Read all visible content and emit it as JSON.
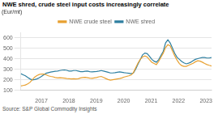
{
  "chart_data": {
    "type": "line",
    "title": "NWE shred, crude steel input costs increasingly correlate",
    "y_label": "(Eur/mt)",
    "source": "Source: S&P Global Commodity Insights",
    "x": [
      2016.25,
      2016.3337,
      2016.4175,
      2016.5012,
      2016.5849,
      2016.6687,
      2016.7524,
      2016.8361,
      2016.9199,
      2017.0036,
      2017.0873,
      2017.1711,
      2017.2548,
      2017.3386,
      2017.4223,
      2017.506,
      2017.5898,
      2017.6735,
      2017.7572,
      2017.841,
      2017.9247,
      2018.0084,
      2018.0922,
      2018.1759,
      2018.2596,
      2018.3434,
      2018.4271,
      2018.5108,
      2018.5946,
      2018.6783,
      2018.762,
      2018.8458,
      2018.9295,
      2019.0133,
      2019.097,
      2019.1807,
      2019.2645,
      2019.3482,
      2019.4319,
      2019.5157,
      2019.5994,
      2019.6831,
      2019.7669,
      2019.8506,
      2019.9343,
      2020.0181,
      2020.1018,
      2020.1855,
      2020.2693,
      2020.353,
      2020.4367,
      2020.5205,
      2020.6042,
      2020.688,
      2020.7717,
      2020.8554,
      2020.9392,
      2021.0229,
      2021.1066,
      2021.1904,
      2021.2741,
      2021.3578,
      2021.4416,
      2021.5253,
      2021.609,
      2021.6928,
      2021.7765,
      2021.8602,
      2021.944,
      2022.0277,
      2022.1114,
      2022.1952,
      2022.2789,
      2022.3627,
      2022.4464,
      2022.5301,
      2022.6139,
      2022.6976,
      2022.7813,
      2022.8651,
      2022.9488,
      2023.0325,
      2023.1163,
      2023.2
    ],
    "series": [
      {
        "name": "NWE crude steel",
        "color": "#e8a030",
        "values": [
          140,
          145,
          150,
          160,
          175,
          200,
          225,
          240,
          250,
          255,
          255,
          248,
          238,
          232,
          228,
          222,
          218,
          220,
          218,
          215,
          212,
          210,
          208,
          210,
          208,
          210,
          218,
          222,
          224,
          220,
          216,
          214,
          218,
          222,
          228,
          232,
          222,
          212,
          202,
          196,
          200,
          204,
          208,
          212,
          218,
          226,
          232,
          238,
          245,
          268,
          315,
          360,
          395,
          418,
          428,
          418,
          392,
          368,
          355,
          345,
          375,
          415,
          455,
          508,
          535,
          525,
          475,
          428,
          388,
          355,
          335,
          328,
          328,
          338,
          348,
          358,
          372,
          382,
          378,
          368,
          355,
          345,
          338,
          332
        ]
      },
      {
        "name": "NWE shred",
        "color": "#2e7fa0",
        "values": [
          258,
          248,
          238,
          222,
          208,
          198,
          202,
          208,
          218,
          232,
          248,
          262,
          268,
          274,
          278,
          282,
          284,
          288,
          292,
          294,
          290,
          284,
          283,
          288,
          288,
          283,
          278,
          278,
          282,
          283,
          278,
          276,
          278,
          280,
          283,
          288,
          283,
          278,
          272,
          265,
          265,
          268,
          272,
          276,
          272,
          268,
          265,
          262,
          258,
          265,
          302,
          350,
          392,
          438,
          455,
          450,
          425,
          395,
          378,
          368,
          392,
          432,
          472,
          552,
          582,
          552,
          502,
          452,
          415,
          395,
          375,
          362,
          352,
          358,
          368,
          382,
          395,
          402,
          408,
          412,
          412,
          408,
          408,
          412
        ]
      }
    ],
    "xlim": [
      2016.25,
      2023.2
    ],
    "xticks": [
      2017,
      2018,
      2019,
      2020,
      2021,
      2022,
      2023
    ],
    "ylim": [
      100,
      650
    ],
    "yticks": [
      100,
      200,
      300,
      400,
      500,
      600
    ],
    "grid": "y",
    "legend": "top"
  }
}
